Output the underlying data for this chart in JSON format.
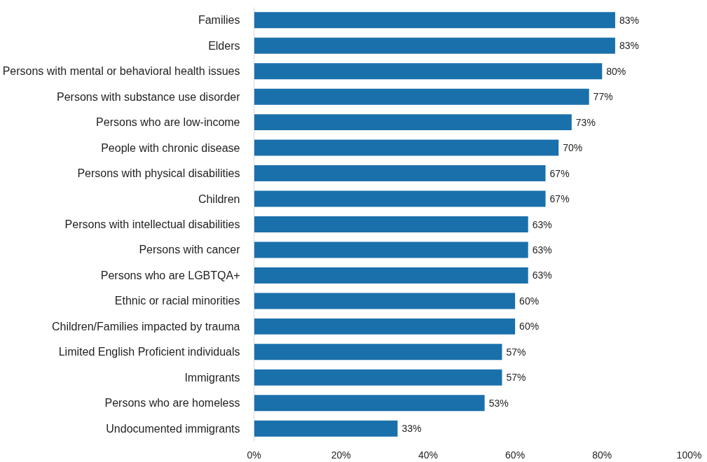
{
  "chart_data": {
    "type": "bar",
    "orientation": "horizontal",
    "categories": [
      "Families",
      "Elders",
      "Persons with mental or behavioral health issues",
      "Persons with substance use disorder",
      "Persons who are low-income",
      "People with chronic disease",
      "Persons with physical disabilities",
      "Children",
      "Persons with intellectual disabilities",
      "Persons with cancer",
      "Persons who are LGBTQA+",
      "Ethnic or racial minorities",
      "Children/Families impacted by trauma",
      "Limited English Proficient individuals",
      "Immigrants",
      "Persons who are homeless",
      "Undocumented immigrants"
    ],
    "values": [
      83,
      83,
      80,
      77,
      73,
      70,
      67,
      67,
      63,
      63,
      63,
      60,
      60,
      57,
      57,
      53,
      33
    ],
    "value_labels": [
      "83%",
      "83%",
      "80%",
      "77%",
      "73%",
      "70%",
      "67%",
      "67%",
      "63%",
      "63%",
      "63%",
      "60%",
      "60%",
      "57%",
      "57%",
      "53%",
      "33%"
    ],
    "color": "#1a70ab",
    "xlim": [
      0,
      100
    ],
    "xticks": [
      {
        "value": 0,
        "label": "0%"
      },
      {
        "value": 20,
        "label": "20%"
      },
      {
        "value": 40,
        "label": "40%"
      },
      {
        "value": 60,
        "label": "60%"
      },
      {
        "value": 80,
        "label": "80%"
      },
      {
        "value": 100,
        "label": "100%"
      }
    ],
    "grid": false
  }
}
